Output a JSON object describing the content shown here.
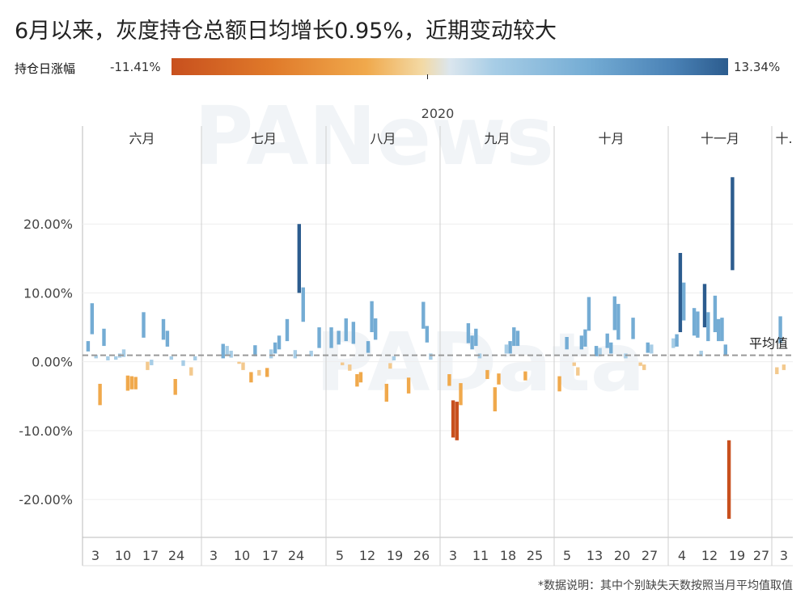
{
  "title": "6月以来，灰度持仓总额日均增长0.95%，近期变动较大",
  "legend": {
    "title": "持仓日涨幅",
    "min_label": "-11.41%",
    "max_label": "13.34%"
  },
  "watermarks": [
    "PANews",
    "PAData"
  ],
  "footnote": "*数据说明：其中个别缺失天数按照当月平均值取值",
  "chart_data": {
    "type": "bar",
    "year_label": "2020",
    "months": [
      {
        "name": "六月",
        "tick_labels": [
          "3",
          "10",
          "17",
          "24"
        ]
      },
      {
        "name": "七月",
        "tick_labels": [
          "3",
          "10",
          "17",
          "24"
        ]
      },
      {
        "name": "八月",
        "tick_labels": [
          "5",
          "12",
          "19",
          "26"
        ]
      },
      {
        "name": "九月",
        "tick_labels": [
          "3",
          "11",
          "18",
          "25"
        ]
      },
      {
        "name": "十月",
        "tick_labels": [
          "5",
          "13",
          "20",
          "27"
        ]
      },
      {
        "name": "十一月",
        "tick_labels": [
          "4",
          "12",
          "19",
          "27"
        ]
      },
      {
        "name": "十.",
        "tick_labels": [
          "3"
        ]
      }
    ],
    "y_tick_labels": [
      "20.00%",
      "10.00%",
      "0.00%",
      "-10.00%",
      "-20.00%"
    ],
    "ylim": [
      -25.5,
      30
    ],
    "average_label": "平均值",
    "average_value": 0.95,
    "colors": {
      "neg_strong": "#c8501e",
      "neg": "#f0a94c",
      "neg_light": "#f3c98e",
      "pos_light": "#a7cde6",
      "pos": "#74acd4",
      "pos_strong": "#2c5c8e",
      "average_line": "#999999"
    },
    "segments": [
      {
        "m": 0,
        "d": 1,
        "low": 1.5,
        "high": 3.0
      },
      {
        "m": 0,
        "d": 2,
        "low": 4.0,
        "high": 8.5
      },
      {
        "m": 0,
        "d": 3,
        "low": 0.5,
        "high": 1.0
      },
      {
        "m": 0,
        "d": 4,
        "low": -6.3,
        "high": -3.2
      },
      {
        "m": 0,
        "d": 5,
        "low": 2.3,
        "high": 4.8
      },
      {
        "m": 0,
        "d": 6,
        "low": 0.2,
        "high": 0.8
      },
      {
        "m": 0,
        "d": 8,
        "low": 0.3,
        "high": 0.8
      },
      {
        "m": 0,
        "d": 9,
        "low": 0.6,
        "high": 1.2
      },
      {
        "m": 0,
        "d": 10,
        "low": 0.7,
        "high": 1.8
      },
      {
        "m": 0,
        "d": 11,
        "low": -4.2,
        "high": -2.0
      },
      {
        "m": 0,
        "d": 12,
        "low": -4.0,
        "high": -2.1
      },
      {
        "m": 0,
        "d": 13,
        "low": -4.0,
        "high": -2.2
      },
      {
        "m": 0,
        "d": 15,
        "low": 3.5,
        "high": 7.2
      },
      {
        "m": 0,
        "d": 16,
        "low": -1.2,
        "high": 0.0
      },
      {
        "m": 0,
        "d": 17,
        "low": -0.5,
        "high": 0.3
      },
      {
        "m": 0,
        "d": 20,
        "low": 3.2,
        "high": 6.2
      },
      {
        "m": 0,
        "d": 21,
        "low": 2.2,
        "high": 4.5
      },
      {
        "m": 0,
        "d": 22,
        "low": 0.3,
        "high": 0.8
      },
      {
        "m": 0,
        "d": 23,
        "low": -4.8,
        "high": -2.5
      },
      {
        "m": 0,
        "d": 25,
        "low": -0.6,
        "high": 0.2
      },
      {
        "m": 0,
        "d": 27,
        "low": -2.0,
        "high": -0.8
      },
      {
        "m": 0,
        "d": 28,
        "low": 0.2,
        "high": 0.8
      },
      {
        "m": 1,
        "d": 5,
        "low": 0.5,
        "high": 2.6
      },
      {
        "m": 1,
        "d": 6,
        "low": 1.0,
        "high": 2.3
      },
      {
        "m": 1,
        "d": 7,
        "low": 0.6,
        "high": 1.6
      },
      {
        "m": 1,
        "d": 9,
        "low": -0.3,
        "high": 0.0
      },
      {
        "m": 1,
        "d": 10,
        "low": -1.2,
        "high": -0.1
      },
      {
        "m": 1,
        "d": 12,
        "low": -3.0,
        "high": -1.5
      },
      {
        "m": 1,
        "d": 13,
        "low": 0.8,
        "high": 2.4
      },
      {
        "m": 1,
        "d": 14,
        "low": -2.0,
        "high": -1.2
      },
      {
        "m": 1,
        "d": 16,
        "low": -2.2,
        "high": -0.9
      },
      {
        "m": 1,
        "d": 17,
        "low": 0.5,
        "high": 1.8
      },
      {
        "m": 1,
        "d": 18,
        "low": 1.2,
        "high": 2.8
      },
      {
        "m": 1,
        "d": 19,
        "low": 1.8,
        "high": 3.8
      },
      {
        "m": 1,
        "d": 21,
        "low": 3.0,
        "high": 6.2
      },
      {
        "m": 1,
        "d": 23,
        "low": 0.5,
        "high": 1.7
      },
      {
        "m": 1,
        "d": 24,
        "low": 10.0,
        "high": 20.0
      },
      {
        "m": 1,
        "d": 25,
        "low": 5.8,
        "high": 10.8
      },
      {
        "m": 1,
        "d": 27,
        "low": 0.8,
        "high": 1.6
      },
      {
        "m": 1,
        "d": 29,
        "low": 2.0,
        "high": 5.0
      },
      {
        "m": 2,
        "d": 1,
        "low": 2.0,
        "high": 5.0
      },
      {
        "m": 2,
        "d": 3,
        "low": 2.5,
        "high": 4.5
      },
      {
        "m": 2,
        "d": 4,
        "low": -0.5,
        "high": -0.1
      },
      {
        "m": 2,
        "d": 5,
        "low": 3.0,
        "high": 6.3
      },
      {
        "m": 2,
        "d": 6,
        "low": -1.3,
        "high": -0.4
      },
      {
        "m": 2,
        "d": 7,
        "low": 2.6,
        "high": 5.8
      },
      {
        "m": 2,
        "d": 8,
        "low": -3.6,
        "high": -1.8
      },
      {
        "m": 2,
        "d": 9,
        "low": -3.0,
        "high": -1.5
      },
      {
        "m": 2,
        "d": 11,
        "low": 1.3,
        "high": 3.0
      },
      {
        "m": 2,
        "d": 12,
        "low": 4.3,
        "high": 8.8
      },
      {
        "m": 2,
        "d": 13,
        "low": 3.2,
        "high": 6.3
      },
      {
        "m": 2,
        "d": 16,
        "low": -5.8,
        "high": -3.2
      },
      {
        "m": 2,
        "d": 17,
        "low": -1.0,
        "high": -0.2
      },
      {
        "m": 2,
        "d": 18,
        "low": 0.2,
        "high": 0.8
      },
      {
        "m": 2,
        "d": 22,
        "low": -4.6,
        "high": -2.3
      },
      {
        "m": 2,
        "d": 26,
        "low": 4.8,
        "high": 8.7
      },
      {
        "m": 2,
        "d": 27,
        "low": 2.8,
        "high": 5.2
      },
      {
        "m": 2,
        "d": 28,
        "low": 0.3,
        "high": 1.2
      },
      {
        "m": 3,
        "d": 2,
        "low": -3.5,
        "high": -1.8
      },
      {
        "m": 3,
        "d": 3,
        "low": -11.0,
        "high": -5.6
      },
      {
        "m": 3,
        "d": 4,
        "low": -11.4,
        "high": -5.8
      },
      {
        "m": 3,
        "d": 5,
        "low": -6.3,
        "high": -3.1
      },
      {
        "m": 3,
        "d": 7,
        "low": 2.7,
        "high": 5.6
      },
      {
        "m": 3,
        "d": 8,
        "low": 1.8,
        "high": 3.8
      },
      {
        "m": 3,
        "d": 9,
        "low": 2.3,
        "high": 4.8
      },
      {
        "m": 3,
        "d": 10,
        "low": 0.5,
        "high": 1.2
      },
      {
        "m": 3,
        "d": 12,
        "low": -2.5,
        "high": -1.2
      },
      {
        "m": 3,
        "d": 14,
        "low": -7.2,
        "high": -3.7
      },
      {
        "m": 3,
        "d": 15,
        "low": -3.3,
        "high": -1.7
      },
      {
        "m": 3,
        "d": 17,
        "low": 1.2,
        "high": 2.5
      },
      {
        "m": 3,
        "d": 18,
        "low": 1.2,
        "high": 3.0
      },
      {
        "m": 3,
        "d": 19,
        "low": 2.3,
        "high": 5.0
      },
      {
        "m": 3,
        "d": 20,
        "low": 2.3,
        "high": 4.5
      },
      {
        "m": 3,
        "d": 22,
        "low": -2.7,
        "high": -1.4
      },
      {
        "m": 4,
        "d": 1,
        "low": -4.3,
        "high": -2.1
      },
      {
        "m": 4,
        "d": 3,
        "low": 1.8,
        "high": 3.6
      },
      {
        "m": 4,
        "d": 5,
        "low": -0.6,
        "high": -0.1
      },
      {
        "m": 4,
        "d": 6,
        "low": -2.0,
        "high": -0.8
      },
      {
        "m": 4,
        "d": 7,
        "low": 1.8,
        "high": 3.8
      },
      {
        "m": 4,
        "d": 8,
        "low": 2.2,
        "high": 4.7
      },
      {
        "m": 4,
        "d": 9,
        "low": 4.5,
        "high": 9.4
      },
      {
        "m": 4,
        "d": 11,
        "low": 0.8,
        "high": 2.3
      },
      {
        "m": 4,
        "d": 12,
        "low": 0.8,
        "high": 2.0
      },
      {
        "m": 4,
        "d": 14,
        "low": 2.0,
        "high": 4.1
      },
      {
        "m": 4,
        "d": 15,
        "low": 1.2,
        "high": 2.8
      },
      {
        "m": 4,
        "d": 16,
        "low": 4.6,
        "high": 9.5
      },
      {
        "m": 4,
        "d": 17,
        "low": 3.2,
        "high": 8.4
      },
      {
        "m": 4,
        "d": 19,
        "low": 0.5,
        "high": 1.2
      },
      {
        "m": 4,
        "d": 21,
        "low": 3.3,
        "high": 6.4
      },
      {
        "m": 4,
        "d": 23,
        "low": -0.6,
        "high": -0.1
      },
      {
        "m": 4,
        "d": 24,
        "low": -1.2,
        "high": -0.4
      },
      {
        "m": 4,
        "d": 25,
        "low": 1.3,
        "high": 2.8
      },
      {
        "m": 4,
        "d": 26,
        "low": 1.2,
        "high": 2.5
      },
      {
        "m": 5,
        "d": 1,
        "low": 2.0,
        "high": 3.4
      },
      {
        "m": 5,
        "d": 2,
        "low": 2.2,
        "high": 4.0
      },
      {
        "m": 5,
        "d": 3,
        "low": 4.3,
        "high": 15.8
      },
      {
        "m": 5,
        "d": 4,
        "low": 6.0,
        "high": 11.5
      },
      {
        "m": 5,
        "d": 7,
        "low": 3.8,
        "high": 7.8
      },
      {
        "m": 5,
        "d": 8,
        "low": 3.5,
        "high": 7.3
      },
      {
        "m": 5,
        "d": 9,
        "low": 0.8,
        "high": 1.6
      },
      {
        "m": 5,
        "d": 10,
        "low": 5.0,
        "high": 11.3
      },
      {
        "m": 5,
        "d": 11,
        "low": 3.0,
        "high": 7.2
      },
      {
        "m": 5,
        "d": 13,
        "low": 4.3,
        "high": 9.6
      },
      {
        "m": 5,
        "d": 14,
        "low": 3.0,
        "high": 6.2
      },
      {
        "m": 5,
        "d": 15,
        "low": 3.0,
        "high": 6.4
      },
      {
        "m": 5,
        "d": 16,
        "low": 1.0,
        "high": 2.5
      },
      {
        "m": 5,
        "d": 17,
        "low": -22.8,
        "high": -11.4
      },
      {
        "m": 5,
        "d": 18,
        "low": 13.3,
        "high": 26.8
      },
      {
        "m": 6,
        "d": 1,
        "low": -1.8,
        "high": -0.8
      },
      {
        "m": 6,
        "d": 2,
        "low": 2.7,
        "high": 6.6
      },
      {
        "m": 6,
        "d": 3,
        "low": -1.2,
        "high": -0.4
      }
    ]
  }
}
